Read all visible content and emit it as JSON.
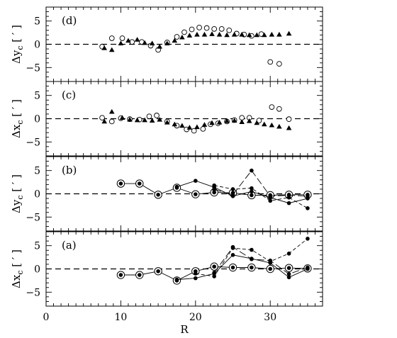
{
  "figure": {
    "xlabel": "R",
    "x_ticks": [
      0,
      10,
      20,
      30
    ],
    "xlim": [
      0,
      37
    ]
  },
  "chart_data": [
    {
      "type": "scatter",
      "panel": "(d)",
      "ylabel_main": "Δy",
      "ylabel_sub": "c",
      "ylabel_unit": "[ ′ ]",
      "ylim": [
        -8,
        8
      ],
      "y_ticks": [
        -5,
        0,
        5
      ],
      "reference_line": 0,
      "series": [
        {
          "marker": "open-circle",
          "line": "none",
          "x": [
            7.5,
            8.8,
            10.2,
            11.5,
            12.8,
            14.0,
            15.0,
            16.2,
            17.5,
            18.5,
            19.5,
            20.5,
            21.5,
            22.5,
            23.5,
            24.5,
            25.5,
            26.5,
            27.5,
            28.8,
            30.0,
            31.2
          ],
          "y": [
            -0.5,
            1.3,
            1.3,
            0.5,
            0.5,
            -0.3,
            -1.2,
            0.4,
            1.6,
            2.6,
            3.2,
            3.6,
            3.5,
            3.3,
            3.3,
            3.0,
            2.3,
            2.1,
            1.8,
            2.2,
            -3.8,
            -4.2
          ]
        },
        {
          "marker": "filled-triangle",
          "line": "none",
          "x": [
            7.8,
            8.8,
            10.0,
            11.0,
            12.2,
            13.2,
            14.2,
            15.2,
            16.2,
            17.2,
            18.2,
            19.2,
            20.2,
            21.2,
            22.2,
            23.2,
            24.2,
            25.2,
            26.2,
            27.2,
            28.2,
            29.2,
            30.2,
            31.2,
            32.5
          ],
          "y": [
            -0.8,
            -1.2,
            0.2,
            0.8,
            1.0,
            0.3,
            0.2,
            -0.5,
            0.2,
            0.8,
            1.5,
            1.9,
            2.1,
            2.1,
            2.2,
            2.1,
            2.0,
            2.1,
            2.1,
            2.0,
            2.0,
            2.0,
            2.1,
            2.1,
            2.3
          ]
        }
      ]
    },
    {
      "type": "scatter",
      "panel": "(c)",
      "ylabel_main": "Δx",
      "ylabel_sub": "c",
      "ylabel_unit": "[ ′ ]",
      "ylim": [
        -8,
        8
      ],
      "y_ticks": [
        -5,
        0,
        5
      ],
      "reference_line": 0,
      "series": [
        {
          "marker": "open-circle",
          "line": "none",
          "x": [
            7.5,
            8.8,
            10.0,
            11.2,
            12.5,
            13.8,
            14.8,
            16.2,
            17.5,
            18.8,
            19.8,
            21.0,
            22.0,
            23.0,
            24.2,
            25.2,
            26.2,
            27.2,
            28.5,
            30.2,
            31.2,
            32.5
          ],
          "y": [
            0.2,
            -0.6,
            0.1,
            -0.1,
            -0.2,
            0.5,
            0.7,
            -0.6,
            -1.5,
            -2.3,
            -2.6,
            -2.2,
            -1.2,
            -1.0,
            -0.6,
            -0.3,
            0.2,
            0.2,
            -0.4,
            2.5,
            2.1,
            -0.1
          ]
        },
        {
          "marker": "filled-triangle",
          "line": "none",
          "x": [
            7.8,
            8.8,
            10.2,
            11.2,
            12.2,
            13.2,
            14.2,
            15.2,
            16.2,
            17.2,
            18.2,
            19.2,
            20.2,
            21.2,
            22.2,
            23.2,
            24.2,
            25.2,
            26.2,
            27.2,
            28.2,
            29.2,
            30.2,
            31.2,
            32.5
          ],
          "y": [
            -0.6,
            1.5,
            0.2,
            -0.2,
            -0.3,
            -0.3,
            -0.4,
            -0.2,
            -0.8,
            -1.2,
            -1.5,
            -1.9,
            -1.8,
            -1.3,
            -0.9,
            -0.8,
            -0.5,
            -0.4,
            -0.7,
            -0.5,
            -0.9,
            -1.2,
            -1.4,
            -1.7,
            -2.0
          ]
        }
      ]
    },
    {
      "type": "line",
      "panel": "(b)",
      "ylabel_main": "Δy",
      "ylabel_sub": "c",
      "ylabel_unit": "[ ′ ]",
      "ylim": [
        -8,
        8
      ],
      "y_ticks": [
        -5,
        0,
        5
      ],
      "reference_line": 0,
      "series": [
        {
          "marker": "circled-dot",
          "line": "solid",
          "x": [
            10,
            12.5,
            15,
            17.5,
            20,
            22.5,
            25,
            27.5,
            30,
            32.5,
            35
          ],
          "y": [
            2.2,
            2.2,
            -0.2,
            1.3,
            -0.1,
            0.3,
            0.2,
            -0.3,
            -0.3,
            -0.2,
            -0.2
          ]
        },
        {
          "marker": "filled-circle",
          "line": "solid",
          "x": [
            17.5,
            20,
            22.5,
            25,
            27.5,
            30,
            32.5,
            35
          ],
          "y": [
            1.5,
            2.8,
            1.4,
            -0.5,
            0.5,
            -0.8,
            -2.0,
            -1.0
          ]
        },
        {
          "marker": "filled-circle",
          "line": "dashed",
          "x": [
            22.5,
            25,
            27.5,
            30,
            32.5,
            35
          ],
          "y": [
            1.8,
            1.0,
            1.2,
            -1.5,
            -0.8,
            -3.1
          ]
        },
        {
          "marker": "filled-circle",
          "line": "long-dashed",
          "x": [
            22.5,
            25,
            27.5,
            30,
            32.5,
            35
          ],
          "y": [
            0.9,
            -0.2,
            5.0,
            -0.5,
            -0.3,
            -0.5
          ]
        }
      ]
    },
    {
      "type": "line",
      "panel": "(a)",
      "ylabel_main": "Δx",
      "ylabel_sub": "c",
      "ylabel_unit": "[ ′ ]",
      "ylim": [
        -8,
        8
      ],
      "y_ticks": [
        -5,
        0,
        5
      ],
      "reference_line": 0,
      "series": [
        {
          "marker": "circled-dot",
          "line": "solid",
          "x": [
            10,
            12.5,
            15,
            17.5,
            20,
            22.5,
            25,
            27.5,
            30,
            32.5,
            35
          ],
          "y": [
            -1.3,
            -1.3,
            -0.5,
            -2.5,
            -0.5,
            0.5,
            0.3,
            0.3,
            0.0,
            0.2,
            0.1
          ]
        },
        {
          "marker": "filled-circle",
          "line": "solid",
          "x": [
            17.5,
            20,
            22.5,
            25,
            27.5,
            30,
            32.5,
            35
          ],
          "y": [
            -2.3,
            -2.0,
            -1.0,
            3.0,
            2.2,
            1.3,
            -1.8,
            0.0
          ]
        },
        {
          "marker": "filled-circle",
          "line": "dashed",
          "x": [
            20,
            22.5,
            25,
            27.5,
            30,
            32.5,
            35
          ],
          "y": [
            -1.0,
            -1.6,
            4.5,
            4.1,
            1.6,
            3.3,
            6.5
          ]
        },
        {
          "marker": "filled-circle",
          "line": "long-dashed",
          "x": [
            22.5,
            25,
            27.5,
            30,
            32.5,
            35
          ],
          "y": [
            -0.8,
            4.7,
            2.1,
            1.8,
            -1.1,
            0.3
          ]
        }
      ]
    }
  ]
}
